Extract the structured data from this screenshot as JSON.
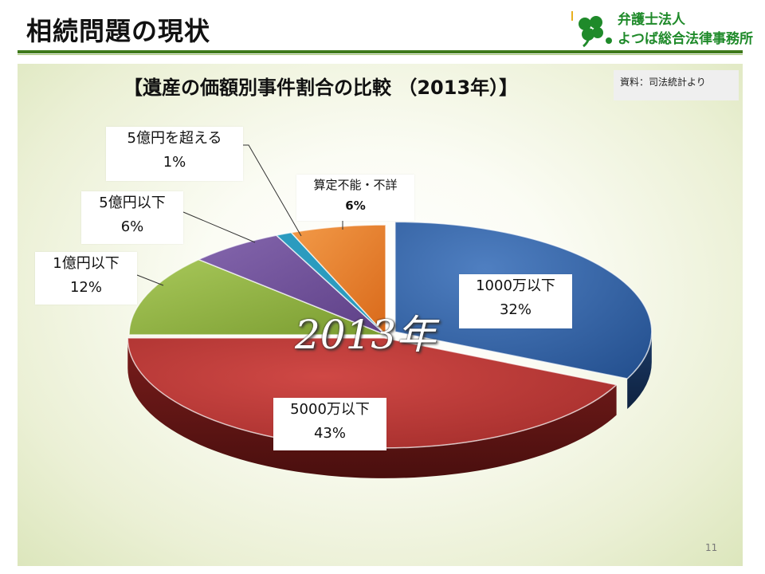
{
  "slide": {
    "title": "相続問題の現状",
    "page_number": "11"
  },
  "logo": {
    "icon": "clover-icon",
    "line1": "弁護士法人",
    "line2": "よつば総合法律事務所"
  },
  "chart": {
    "title": "【遺産の価額別事件割合の比較 （2013年）】",
    "source": "資料：司法統計より",
    "overlay_label": "2013年"
  },
  "colors": {
    "accent_green": "#3f7a1c",
    "logo_green": "#1f8a2a"
  },
  "chart_data": {
    "type": "pie",
    "style": "3d-exploded",
    "slices": [
      {
        "label": "1000万以下",
        "percent_label": "32%",
        "value": 32,
        "color": "#2e5c9e"
      },
      {
        "label": "5000万以下",
        "percent_label": "43%",
        "value": 43,
        "color": "#b53331"
      },
      {
        "label": "1億円以下",
        "percent_label": "12%",
        "value": 12,
        "color": "#8aad3a"
      },
      {
        "label": "5億円以下",
        "percent_label": "6%",
        "value": 6,
        "color": "#6a4a92"
      },
      {
        "label": "5億円を超える",
        "percent_label": "1%",
        "value": 1,
        "color": "#2b9bbf"
      },
      {
        "label": "算定不能・不詳",
        "percent_label": "6%",
        "value": 6,
        "color": "#e8781e"
      }
    ]
  }
}
